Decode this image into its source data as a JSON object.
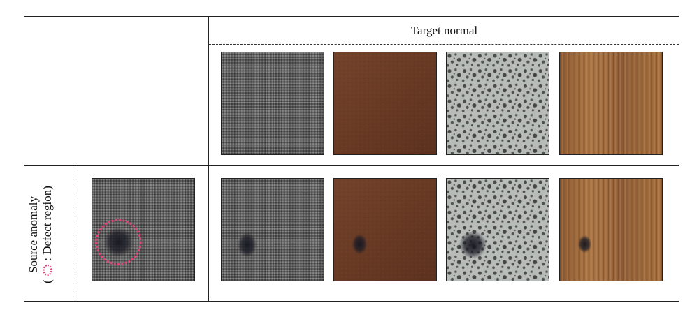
{
  "header": {
    "target_label": "Target normal"
  },
  "row": {
    "label_line1": "Source anomaly",
    "label_line2_open": "(",
    "label_line2_close": ": Defect region)",
    "defect_marker_color": "#e0457a"
  },
  "targets": [
    {
      "texture": "fabric",
      "base": "#6b6b6b"
    },
    {
      "texture": "leather",
      "base": "#6a3a24"
    },
    {
      "texture": "tile",
      "base": "#a9aeab"
    },
    {
      "texture": "wood",
      "base": "#9a6a3e"
    }
  ],
  "source": {
    "texture": "fabric",
    "defect": "dark spot"
  },
  "results": [
    {
      "texture": "fabric",
      "defect": "dark spot"
    },
    {
      "texture": "leather",
      "defect": "dark spot"
    },
    {
      "texture": "tile",
      "defect": "dark spot"
    },
    {
      "texture": "wood",
      "defect": "dark spot"
    }
  ]
}
